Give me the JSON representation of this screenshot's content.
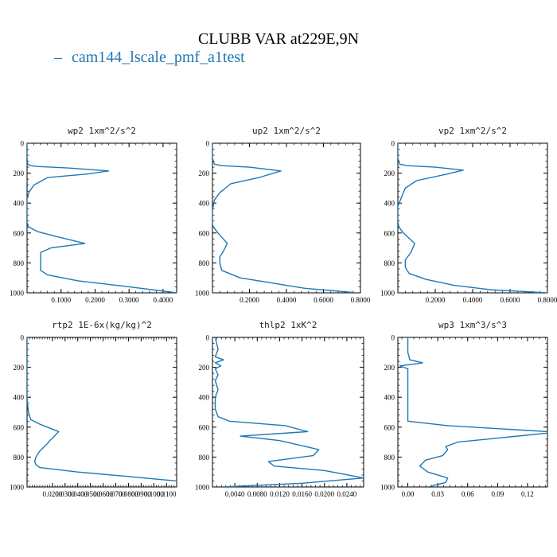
{
  "figure": {
    "title": "CLUBB VAR at229E,9N",
    "legend": [
      {
        "label": "cam144_lscale_pmf_a1test",
        "color": "#1f77b4"
      }
    ]
  },
  "chart_data": [
    {
      "type": "line",
      "title": "wp2  1xm^2/s^2",
      "xlim": [
        0,
        0.44
      ],
      "ylim": [
        1000,
        0
      ],
      "xticks": [
        0.1,
        0.2,
        0.3,
        0.4
      ],
      "xtick_labels": [
        "0.1000",
        "0.2000",
        "0.3000",
        "0.4000"
      ],
      "yticks": [
        0,
        200,
        400,
        600,
        800,
        1000
      ],
      "ytick_labels": [
        "0",
        "200",
        "400",
        "600",
        "800",
        "1000"
      ],
      "series": [
        {
          "color": "#1f77b4",
          "x": [
            0,
            0,
            0.002,
            0.01,
            0.03,
            0.12,
            0.24,
            0.18,
            0.06,
            0.02,
            0.005,
            0,
            0,
            0,
            0.005,
            0.03,
            0.08,
            0.17,
            0.07,
            0.04,
            0.04,
            0.04,
            0.04,
            0.06,
            0.15,
            0.3,
            0.44
          ],
          "y": [
            0,
            100,
            140,
            150,
            155,
            165,
            185,
            205,
            230,
            280,
            330,
            370,
            450,
            530,
            560,
            590,
            620,
            670,
            700,
            730,
            780,
            820,
            850,
            880,
            920,
            960,
            1000
          ]
        }
      ]
    },
    {
      "type": "line",
      "title": "up2  1xm^2/s^2",
      "xlim": [
        0,
        0.8
      ],
      "ylim": [
        1000,
        0
      ],
      "xticks": [
        0.2,
        0.4,
        0.6,
        0.8
      ],
      "xtick_labels": [
        "0.2000",
        "0.4000",
        "0.6000",
        "0.8000"
      ],
      "yticks": [
        0,
        200,
        400,
        600,
        800,
        1000
      ],
      "ytick_labels": [
        "0",
        "200",
        "400",
        "600",
        "800",
        "1000"
      ],
      "series": [
        {
          "color": "#1f77b4",
          "x": [
            0,
            0,
            0.01,
            0.05,
            0.2,
            0.37,
            0.25,
            0.1,
            0.04,
            0.01,
            0,
            0,
            0.005,
            0.03,
            0.08,
            0.06,
            0.04,
            0.04,
            0.05,
            0.15,
            0.35,
            0.5,
            0.78
          ],
          "y": [
            0,
            100,
            140,
            150,
            160,
            185,
            230,
            270,
            330,
            380,
            450,
            540,
            560,
            600,
            670,
            720,
            760,
            800,
            850,
            900,
            940,
            970,
            1000
          ]
        }
      ]
    },
    {
      "type": "line",
      "title": "vp2  1xm^2/s^2",
      "xlim": [
        0,
        0.8
      ],
      "ylim": [
        1000,
        0
      ],
      "xticks": [
        0.2,
        0.4,
        0.6,
        0.8
      ],
      "xtick_labels": [
        "0.2000",
        "0.4000",
        "0.6000",
        "0.8000"
      ],
      "yticks": [
        0,
        200,
        400,
        600,
        800,
        1000
      ],
      "ytick_labels": [
        "0",
        "200",
        "400",
        "600",
        "800",
        "1000"
      ],
      "series": [
        {
          "color": "#1f77b4",
          "x": [
            0,
            0,
            0.01,
            0.05,
            0.2,
            0.35,
            0.25,
            0.1,
            0.04,
            0.02,
            0,
            0,
            0.005,
            0.03,
            0.09,
            0.07,
            0.04,
            0.04,
            0.06,
            0.15,
            0.3,
            0.5,
            0.8
          ],
          "y": [
            0,
            100,
            140,
            150,
            160,
            180,
            210,
            250,
            300,
            360,
            420,
            520,
            560,
            600,
            670,
            730,
            780,
            830,
            870,
            910,
            950,
            980,
            1000
          ]
        }
      ]
    },
    {
      "type": "line",
      "title": "rtp2  1E-6x(kg/kg)^2",
      "xlim": [
        0,
        0.118
      ],
      "ylim": [
        1000,
        0
      ],
      "xticks": [
        0.02,
        0.03,
        0.04,
        0.05,
        0.06,
        0.07,
        0.08,
        0.09,
        0.1,
        0.11
      ],
      "xtick_labels": [
        "0.0200",
        "0.0300",
        "0.0400",
        "0.0500",
        "0.0600",
        "0.0700",
        "0.0800",
        "0.0900",
        "0.1000",
        "0.1100"
      ],
      "yticks": [
        0,
        200,
        400,
        600,
        800,
        1000
      ],
      "ytick_labels": [
        "0",
        "200",
        "400",
        "600",
        "800",
        "1000"
      ],
      "series": [
        {
          "color": "#1f77b4",
          "x": [
            0,
            0,
            0.001,
            0.003,
            0.01,
            0.025,
            0.018,
            0.016,
            0.01,
            0.007,
            0.006,
            0.007,
            0.01,
            0.04,
            0.08,
            0.105,
            0.118
          ],
          "y": [
            0,
            400,
            500,
            550,
            580,
            630,
            690,
            710,
            760,
            800,
            830,
            850,
            870,
            900,
            930,
            950,
            960
          ]
        }
      ]
    },
    {
      "type": "line",
      "title": "thlp2  1xK^2",
      "xlim": [
        0,
        0.027
      ],
      "ylim": [
        1000,
        0
      ],
      "xticks": [
        0.004,
        0.008,
        0.012,
        0.016,
        0.02,
        0.024
      ],
      "xtick_labels": [
        "0.0040",
        "0.0080",
        "0.0120",
        "0.0160",
        "0.0200",
        "0.0240"
      ],
      "yticks": [
        0,
        200,
        400,
        600,
        800,
        1000
      ],
      "ytick_labels": [
        "0",
        "200",
        "400",
        "600",
        "800",
        "1000"
      ],
      "series": [
        {
          "color": "#1f77b4",
          "x": [
            0.0005,
            0.001,
            0.0005,
            0.002,
            0.0005,
            0.0015,
            0.0005,
            0.001,
            0.0005,
            0.001,
            0.0005,
            0.0005,
            0.001,
            0.003,
            0.013,
            0.017,
            0.005,
            0.012,
            0.019,
            0.018,
            0.01,
            0.011,
            0.02,
            0.027,
            0.016,
            0.002
          ],
          "y": [
            0,
            80,
            130,
            150,
            170,
            190,
            210,
            250,
            290,
            350,
            400,
            480,
            530,
            560,
            590,
            630,
            660,
            690,
            750,
            790,
            830,
            860,
            890,
            940,
            975,
            1000
          ]
        }
      ]
    },
    {
      "type": "line",
      "title": "wp3  1xm^3/s^3",
      "xlim": [
        -0.01,
        0.14
      ],
      "ylim": [
        1000,
        0
      ],
      "xticks": [
        0,
        0.03,
        0.06,
        0.09,
        0.12
      ],
      "xtick_labels": [
        "0.00",
        "0.03",
        "0.06",
        "0.09",
        "0.12"
      ],
      "yticks": [
        0,
        200,
        400,
        600,
        800,
        1000
      ],
      "ytick_labels": [
        "0",
        "200",
        "400",
        "600",
        "800",
        "1000"
      ],
      "series": [
        {
          "color": "#1f77b4",
          "x": [
            0,
            0,
            0.002,
            0.015,
            0.005,
            -0.008,
            0,
            0,
            0,
            0,
            0.04,
            0.14,
            0.14,
            0.05,
            0.038,
            0.04,
            0.035,
            0.018,
            0.012,
            0.02,
            0.04,
            0.038,
            0.02
          ],
          "y": [
            0,
            100,
            150,
            170,
            180,
            190,
            210,
            400,
            500,
            560,
            590,
            630,
            640,
            700,
            730,
            750,
            790,
            820,
            860,
            900,
            940,
            970,
            1000
          ]
        }
      ]
    }
  ]
}
